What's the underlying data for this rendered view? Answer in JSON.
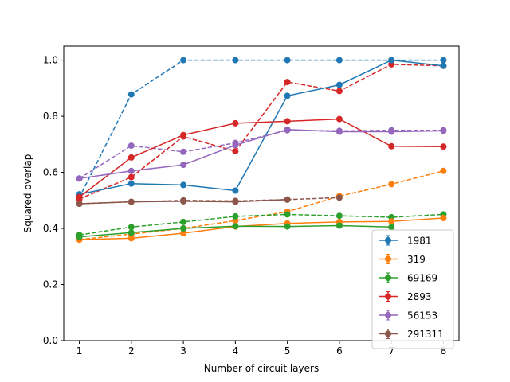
{
  "chart_data": {
    "type": "line",
    "xlabel": "Number of circuit layers",
    "ylabel": "Squared overlap",
    "xlim": [
      0.7,
      8.3
    ],
    "ylim": [
      0.0,
      1.05
    ],
    "x": [
      1,
      2,
      3,
      4,
      5,
      6,
      7,
      8
    ],
    "xticks": [
      1,
      2,
      3,
      4,
      5,
      6,
      7,
      8
    ],
    "yticks": [
      0.0,
      0.2,
      0.4,
      0.6,
      0.8,
      1.0
    ],
    "ytick_labels": [
      "0.0",
      "0.2",
      "0.4",
      "0.6",
      "0.8",
      "1.0"
    ],
    "grid": false,
    "legend_position": "lower-right",
    "series": [
      {
        "name": "1981",
        "color": "#1f77b4",
        "solid": [
          0.522,
          0.56,
          0.555,
          0.535,
          0.873,
          0.912,
          1.0,
          0.98
        ],
        "dashed": [
          0.51,
          0.878,
          1.0,
          1.0,
          1.0,
          1.0,
          1.0,
          1.0
        ]
      },
      {
        "name": "319",
        "color": "#ff7f0e",
        "solid": [
          0.36,
          0.365,
          0.383,
          0.407,
          0.418,
          0.423,
          0.425,
          0.437
        ],
        "dashed": [
          0.36,
          0.38,
          0.4,
          0.428,
          0.46,
          0.515,
          0.558,
          0.605
        ]
      },
      {
        "name": "69169",
        "color": "#2ca02c",
        "solid": [
          0.37,
          0.385,
          0.4,
          0.408,
          0.407,
          0.41,
          0.405,
          null
        ],
        "dashed": [
          0.377,
          0.405,
          0.423,
          0.443,
          0.45,
          0.445,
          0.44,
          0.45
        ]
      },
      {
        "name": "2893",
        "color": "#d62728",
        "solid": [
          0.512,
          0.653,
          0.733,
          0.775,
          0.782,
          0.79,
          0.693,
          0.692
        ],
        "dashed": [
          0.505,
          0.583,
          0.728,
          0.675,
          0.922,
          0.89,
          0.985,
          0.98
        ]
      },
      {
        "name": "56153",
        "color": "#9467bd",
        "solid": [
          0.578,
          0.605,
          0.627,
          0.697,
          0.753,
          0.745,
          0.745,
          0.748
        ],
        "dashed": [
          0.578,
          0.695,
          0.673,
          0.705,
          0.75,
          0.748,
          0.75,
          0.75
        ]
      },
      {
        "name": "291311",
        "color": "#8c564b",
        "solid": [
          0.488,
          0.495,
          0.497,
          0.495,
          0.503,
          null,
          null,
          null
        ],
        "dashed": [
          0.488,
          0.495,
          0.5,
          0.498,
          0.503,
          0.51,
          null,
          null
        ]
      }
    ]
  }
}
